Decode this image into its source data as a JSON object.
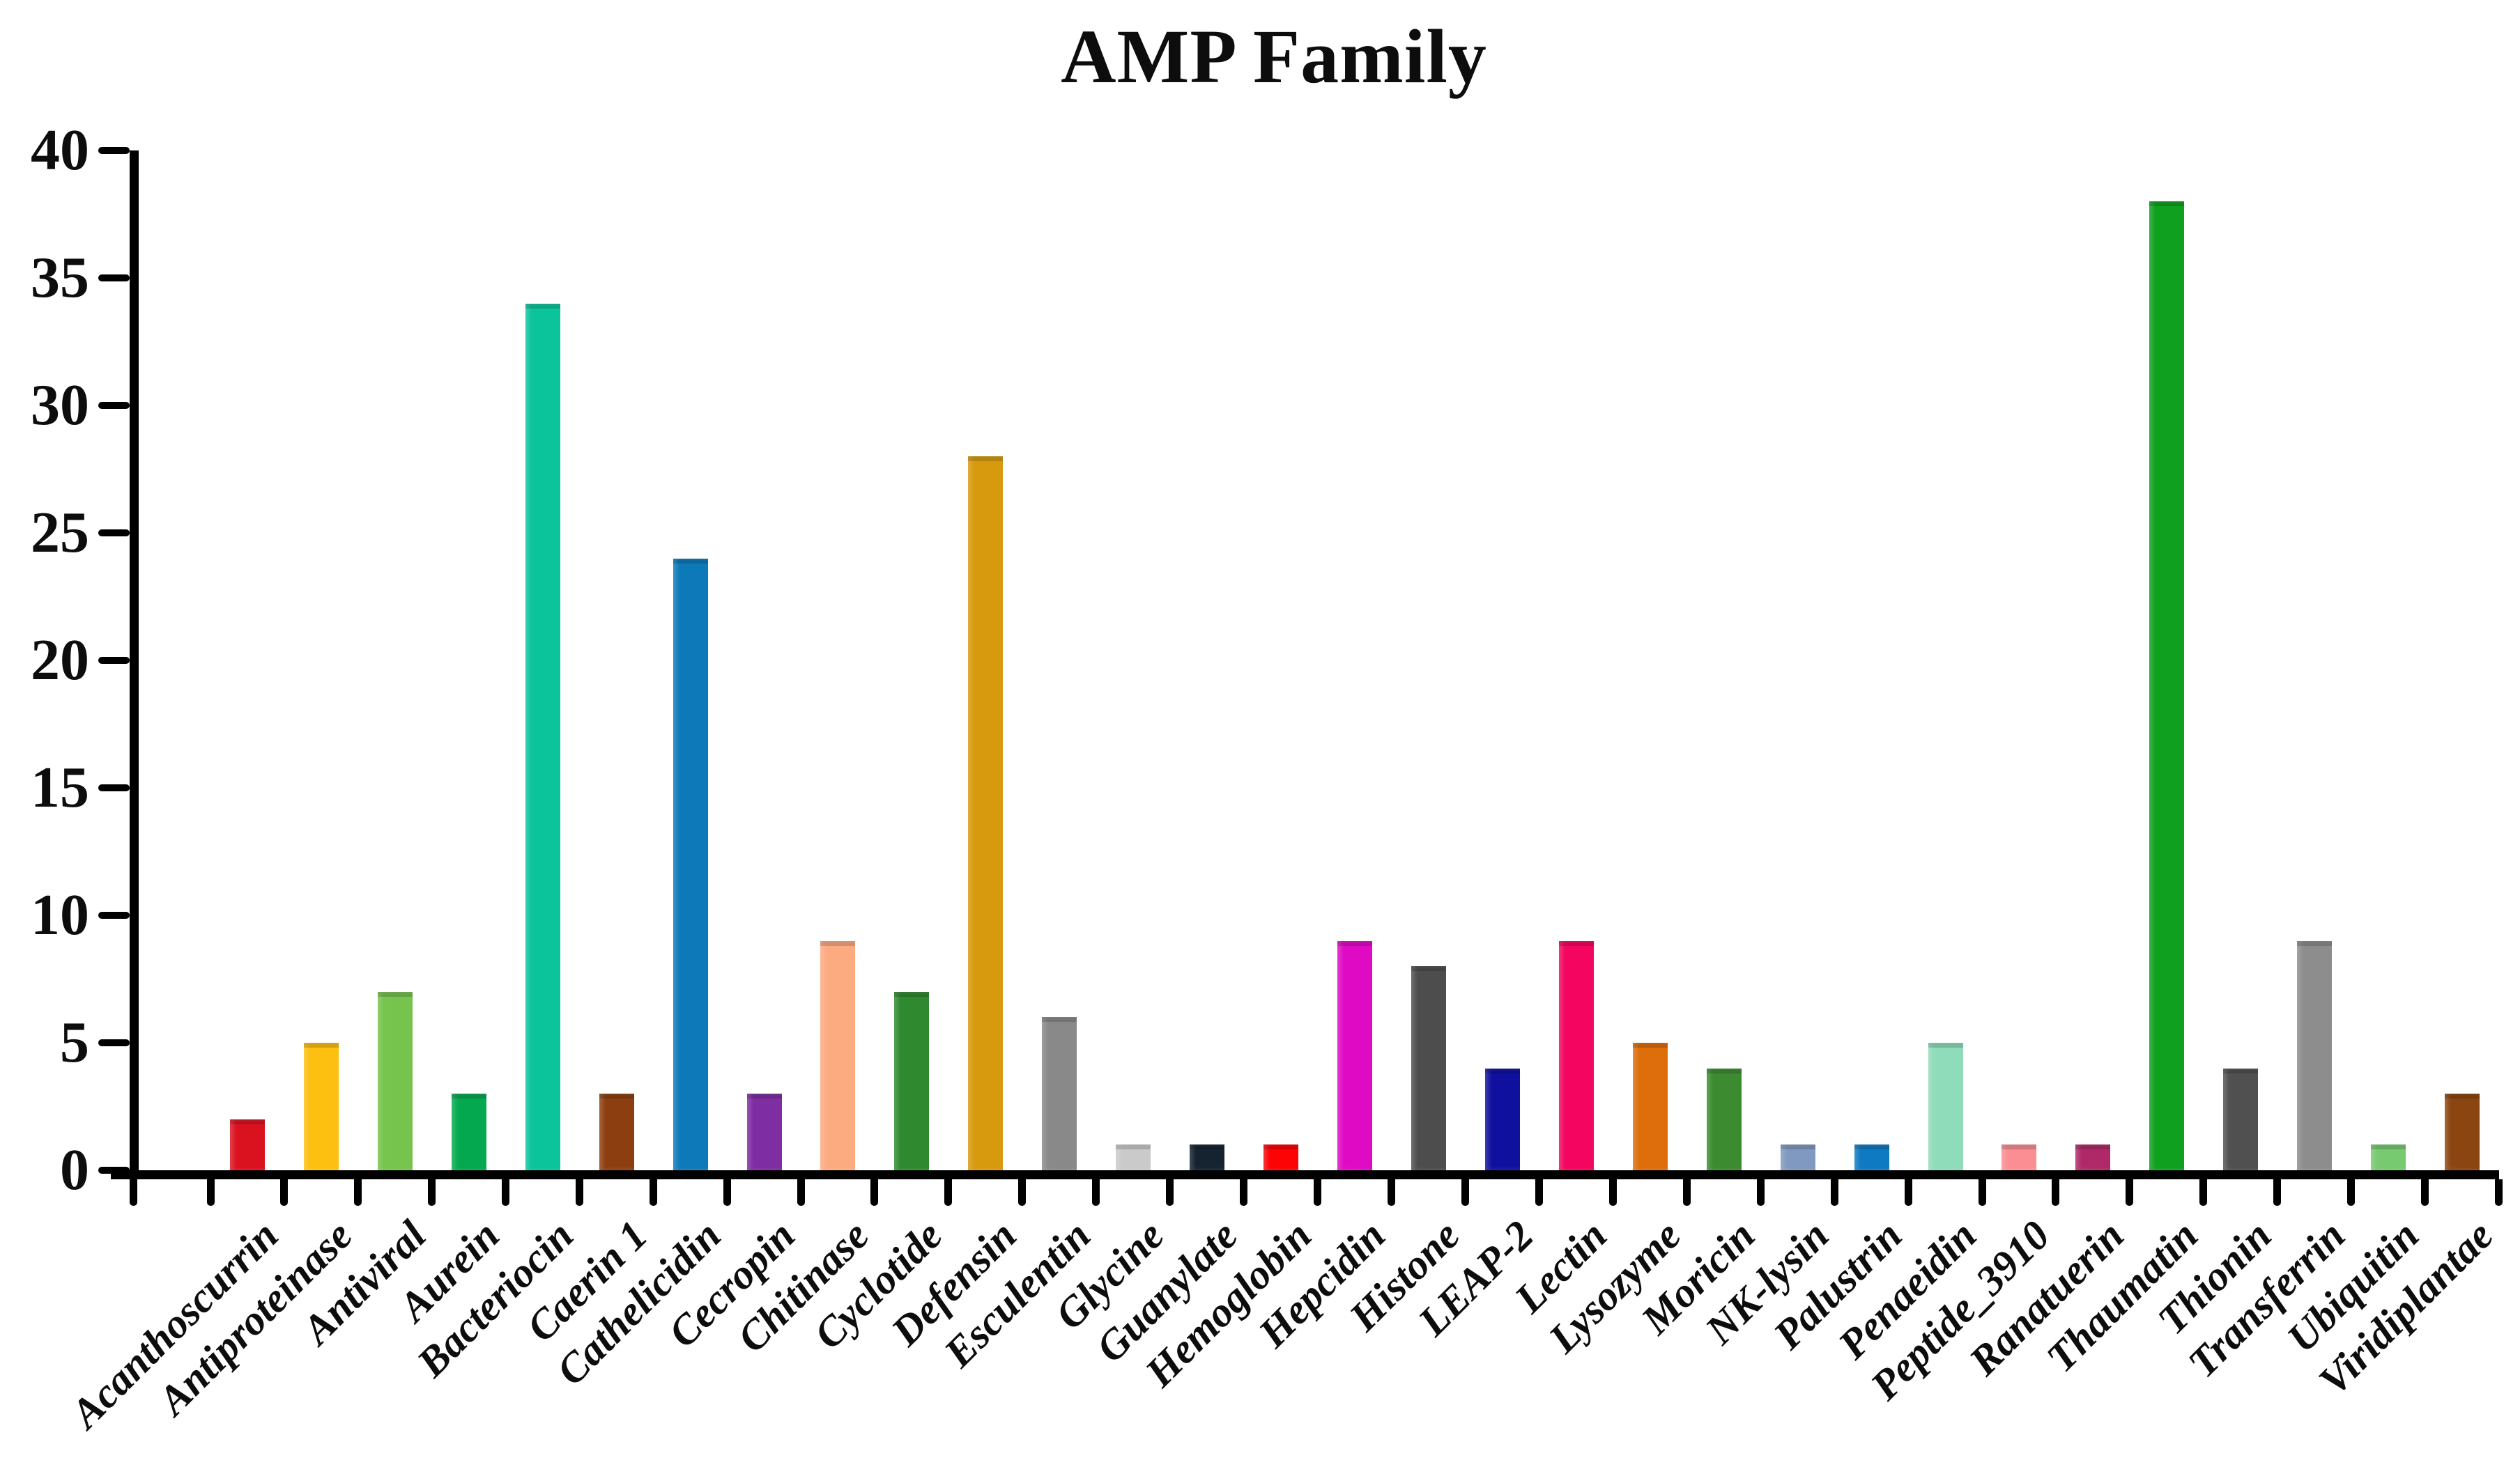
{
  "title": "AMP Family",
  "chart_data": {
    "type": "bar",
    "title": "AMP Family",
    "xlabel": "",
    "ylabel": "",
    "ylim": [
      0,
      40
    ],
    "yticks": [
      0,
      5,
      10,
      15,
      20,
      25,
      30,
      35,
      40
    ],
    "grid": false,
    "legend": false,
    "background_color": "#ffffff",
    "axis_color": "#000000",
    "categories": [
      "Acanthoscurrin",
      "Antiproteinase",
      "Antiviral",
      "Aurein",
      "Bacteriocin",
      "Caerin 1",
      "Cathelicidin",
      "Cecropin",
      "Chitinase",
      "Cyclotide",
      "Defensin",
      "Esculentin",
      "Glycine",
      "Guanylate",
      "Hemoglobin",
      "Hepcidin",
      "Histone",
      "LEAP-2",
      "Lectin",
      "Lysozyme",
      "Moricin",
      "NK-lysin",
      "Palustrin",
      "Penaeidin",
      "Peptide_3910",
      "Ranatuerin",
      "Thaumatin",
      "Thionin",
      "Transferrin",
      "Ubiquitin",
      "Viridiplantae"
    ],
    "values": [
      2,
      5,
      7,
      3,
      34,
      3,
      24,
      3,
      9,
      7,
      28,
      6,
      1,
      1,
      1,
      9,
      8,
      4,
      9,
      5,
      4,
      1,
      1,
      5,
      1,
      1,
      38,
      4,
      9,
      1,
      3
    ],
    "bar_colors": [
      "#da1220",
      "#fdc011",
      "#76c44e",
      "#04a94f",
      "#0bc49c",
      "#8d3e10",
      "#0d79b8",
      "#7e2da2",
      "#fcab80",
      "#2f8a2f",
      "#d79a0f",
      "#898989",
      "#cacaca",
      "#152230",
      "#fc0306",
      "#df0bc4",
      "#4d4d4d",
      "#10109f",
      "#f30560",
      "#dd6e0b",
      "#3c8b30",
      "#8099c0",
      "#0e7ac2",
      "#8fdcba",
      "#fa8e93",
      "#af2968",
      "#0fa01f",
      "#505050",
      "#8d8d8d",
      "#78ca71",
      "#8b4511"
    ]
  }
}
